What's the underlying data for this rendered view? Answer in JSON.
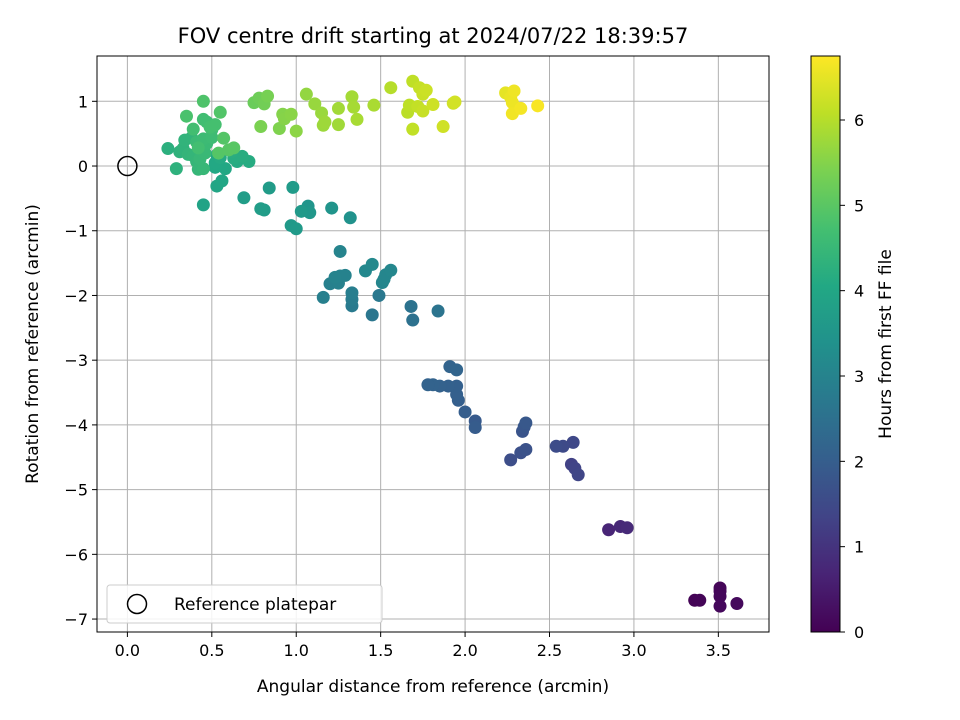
{
  "chart_data": {
    "type": "scatter",
    "title": "FOV centre drift starting at 2024/07/22 18:39:57",
    "xlabel": "Angular distance from reference (arcmin)",
    "ylabel": "Rotation from reference (arcmin)",
    "xlim": [
      -0.18,
      3.8
    ],
    "ylim": [
      -7.2,
      1.7
    ],
    "xticks": [
      0.0,
      0.5,
      1.0,
      1.5,
      2.0,
      2.5,
      3.0,
      3.5
    ],
    "xtick_labels": [
      "0.0",
      "0.5",
      "1.0",
      "1.5",
      "2.0",
      "2.5",
      "3.0",
      "3.5"
    ],
    "yticks": [
      1,
      0,
      -1,
      -2,
      -3,
      -4,
      -5,
      -6,
      -7
    ],
    "ytick_labels": [
      "1",
      "0",
      "−1",
      "−2",
      "−3",
      "−4",
      "−5",
      "−6",
      "−7"
    ],
    "grid": true,
    "legend": {
      "placement": "lower-left",
      "entries": [
        "Reference platepar"
      ]
    },
    "reference_point": {
      "x": 0.0,
      "y": 0.0,
      "label": "Reference platepar"
    },
    "colorbar": {
      "label": "Hours from first FF file",
      "colormap": "viridis",
      "range": [
        0,
        6.75
      ],
      "ticks": [
        0,
        1,
        2,
        3,
        4,
        5,
        6
      ],
      "tick_labels": [
        "0",
        "1",
        "2",
        "3",
        "4",
        "5",
        "6"
      ]
    },
    "points": [
      [
        3.36,
        -6.71,
        0.05
      ],
      [
        3.39,
        -6.71,
        0.07
      ],
      [
        3.51,
        -6.52,
        0.09
      ],
      [
        3.51,
        -6.57,
        0.1
      ],
      [
        3.51,
        -6.65,
        0.12
      ],
      [
        3.51,
        -6.8,
        0.14
      ],
      [
        3.61,
        -6.76,
        0.16
      ],
      [
        2.85,
        -5.62,
        0.7
      ],
      [
        2.92,
        -5.57,
        0.75
      ],
      [
        2.96,
        -5.59,
        0.8
      ],
      [
        2.63,
        -4.61,
        1.3
      ],
      [
        2.65,
        -4.67,
        1.35
      ],
      [
        2.67,
        -4.77,
        1.4
      ],
      [
        2.64,
        -4.27,
        1.45
      ],
      [
        2.58,
        -4.33,
        1.5
      ],
      [
        2.54,
        -4.33,
        1.55
      ],
      [
        2.27,
        -4.54,
        1.6
      ],
      [
        2.33,
        -4.43,
        1.65
      ],
      [
        2.36,
        -4.38,
        1.7
      ],
      [
        2.34,
        -4.1,
        1.75
      ],
      [
        2.35,
        -4.03,
        1.8
      ],
      [
        2.36,
        -3.97,
        1.85
      ],
      [
        2.06,
        -3.94,
        1.9
      ],
      [
        2.06,
        -4.04,
        1.95
      ],
      [
        2.0,
        -3.8,
        2.0
      ],
      [
        1.96,
        -3.62,
        2.02
      ],
      [
        1.95,
        -3.53,
        2.04
      ],
      [
        1.95,
        -3.4,
        2.06
      ],
      [
        1.9,
        -3.4,
        2.08
      ],
      [
        1.85,
        -3.4,
        2.1
      ],
      [
        1.81,
        -3.38,
        2.12
      ],
      [
        1.78,
        -3.38,
        2.14
      ],
      [
        1.91,
        -3.1,
        2.16
      ],
      [
        1.95,
        -3.15,
        2.18
      ],
      [
        1.69,
        -2.38,
        2.5
      ],
      [
        1.68,
        -2.17,
        2.55
      ],
      [
        1.84,
        -2.24,
        2.6
      ],
      [
        1.45,
        -2.3,
        2.65
      ],
      [
        1.49,
        -2.0,
        2.7
      ],
      [
        1.33,
        -2.16,
        2.75
      ],
      [
        1.33,
        -2.06,
        2.8
      ],
      [
        1.33,
        -1.96,
        2.85
      ],
      [
        1.16,
        -2.03,
        2.9
      ],
      [
        1.2,
        -1.82,
        2.92
      ],
      [
        1.25,
        -1.81,
        2.94
      ],
      [
        1.26,
        -1.7,
        2.96
      ],
      [
        1.29,
        -1.69,
        2.98
      ],
      [
        1.23,
        -1.72,
        3.0
      ],
      [
        1.26,
        -1.32,
        3.02
      ],
      [
        1.51,
        -1.8,
        3.05
      ],
      [
        1.52,
        -1.75,
        3.07
      ],
      [
        1.53,
        -1.68,
        3.09
      ],
      [
        1.56,
        -1.61,
        3.11
      ],
      [
        1.41,
        -1.62,
        3.13
      ],
      [
        1.45,
        -1.52,
        3.15
      ],
      [
        1.32,
        -0.8,
        3.4
      ],
      [
        1.21,
        -0.65,
        3.45
      ],
      [
        1.07,
        -0.62,
        3.5
      ],
      [
        1.08,
        -0.72,
        3.55
      ],
      [
        1.03,
        -0.7,
        3.6
      ],
      [
        0.97,
        -0.92,
        3.62
      ],
      [
        1.0,
        -0.97,
        3.64
      ],
      [
        0.98,
        -0.33,
        3.66
      ],
      [
        0.84,
        -0.34,
        3.68
      ],
      [
        0.81,
        -0.68,
        3.7
      ],
      [
        0.79,
        -0.66,
        3.72
      ],
      [
        0.69,
        -0.49,
        3.74
      ],
      [
        0.45,
        -0.6,
        3.9
      ],
      [
        0.53,
        -0.31,
        3.95
      ],
      [
        0.56,
        -0.23,
        4.0
      ],
      [
        0.58,
        -0.04,
        4.02
      ],
      [
        0.52,
        -0.02,
        4.04
      ],
      [
        0.52,
        0.05,
        4.06
      ],
      [
        0.53,
        0.17,
        4.08
      ],
      [
        0.55,
        0.13,
        4.1
      ],
      [
        0.65,
        0.07,
        4.12
      ],
      [
        0.72,
        0.07,
        4.14
      ],
      [
        0.63,
        0.12,
        4.16
      ],
      [
        0.68,
        0.15,
        4.18
      ],
      [
        0.62,
        0.22,
        4.2
      ],
      [
        0.24,
        0.27,
        4.25
      ],
      [
        0.29,
        -0.04,
        4.3
      ],
      [
        0.31,
        0.22,
        4.32
      ],
      [
        0.33,
        0.27,
        4.34
      ],
      [
        0.34,
        0.4,
        4.36
      ],
      [
        0.38,
        0.44,
        4.38
      ],
      [
        0.36,
        0.18,
        4.4
      ],
      [
        0.39,
        0.16,
        4.42
      ],
      [
        0.41,
        0.07,
        4.44
      ],
      [
        0.42,
        -0.05,
        4.46
      ],
      [
        0.45,
        -0.04,
        4.48
      ],
      [
        0.43,
        0.11,
        4.5
      ],
      [
        0.46,
        0.2,
        4.52
      ],
      [
        0.47,
        0.35,
        4.54
      ],
      [
        0.41,
        0.37,
        4.56
      ],
      [
        0.45,
        0.42,
        4.58
      ],
      [
        0.5,
        0.44,
        4.6
      ],
      [
        0.5,
        0.56,
        4.62
      ],
      [
        0.47,
        0.68,
        4.64
      ],
      [
        0.45,
        0.72,
        4.66
      ],
      [
        0.39,
        0.57,
        4.68
      ],
      [
        0.42,
        0.28,
        4.7
      ],
      [
        0.49,
        0.6,
        4.72
      ],
      [
        0.52,
        0.64,
        4.74
      ],
      [
        0.35,
        0.77,
        4.8
      ],
      [
        0.45,
        1.0,
        4.85
      ],
      [
        0.55,
        0.83,
        4.9
      ],
      [
        0.57,
        0.43,
        4.92
      ],
      [
        0.54,
        0.2,
        4.94
      ],
      [
        0.6,
        0.25,
        4.96
      ],
      [
        0.63,
        0.28,
        4.98
      ],
      [
        0.75,
        0.98,
        5.2
      ],
      [
        0.78,
        1.05,
        5.25
      ],
      [
        0.81,
        0.96,
        5.3
      ],
      [
        0.83,
        1.08,
        5.35
      ],
      [
        0.79,
        0.61,
        5.4
      ],
      [
        0.9,
        0.58,
        5.45
      ],
      [
        0.92,
        0.8,
        5.5
      ],
      [
        0.93,
        0.73,
        5.52
      ],
      [
        0.97,
        0.8,
        5.55
      ],
      [
        1.0,
        0.54,
        5.58
      ],
      [
        1.06,
        1.11,
        5.65
      ],
      [
        1.11,
        0.96,
        5.7
      ],
      [
        1.15,
        0.82,
        5.72
      ],
      [
        1.16,
        0.63,
        5.74
      ],
      [
        1.17,
        0.68,
        5.76
      ],
      [
        1.25,
        0.64,
        5.78
      ],
      [
        1.25,
        0.89,
        5.8
      ],
      [
        1.33,
        1.07,
        5.82
      ],
      [
        1.34,
        0.91,
        5.84
      ],
      [
        1.36,
        0.72,
        5.86
      ],
      [
        1.46,
        0.94,
        5.88
      ],
      [
        1.56,
        1.21,
        6.0
      ],
      [
        1.66,
        0.83,
        6.05
      ],
      [
        1.67,
        0.94,
        6.08
      ],
      [
        1.69,
        1.31,
        6.1
      ],
      [
        1.69,
        0.57,
        6.12
      ],
      [
        1.72,
        0.92,
        6.14
      ],
      [
        1.73,
        1.21,
        6.16
      ],
      [
        1.75,
        0.85,
        6.18
      ],
      [
        1.75,
        1.11,
        6.2
      ],
      [
        1.77,
        1.17,
        6.22
      ],
      [
        1.81,
        0.95,
        6.24
      ],
      [
        1.87,
        0.61,
        6.26
      ],
      [
        1.93,
        0.97,
        6.28
      ],
      [
        1.94,
        0.99,
        6.3
      ],
      [
        2.24,
        1.13,
        6.5
      ],
      [
        2.27,
        1.06,
        6.55
      ],
      [
        2.28,
        0.98,
        6.58
      ],
      [
        2.29,
        1.16,
        6.6
      ],
      [
        2.28,
        0.81,
        6.62
      ],
      [
        2.33,
        0.89,
        6.65
      ],
      [
        2.43,
        0.93,
        6.7
      ]
    ]
  }
}
